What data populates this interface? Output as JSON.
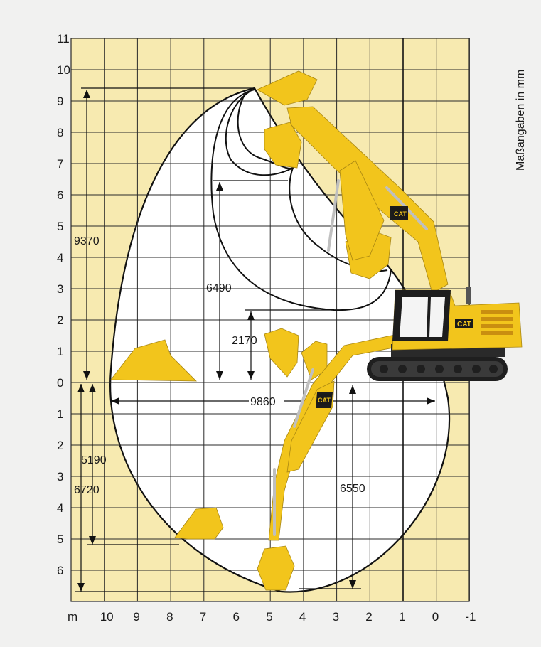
{
  "unit_label": "Maßangaben in mm",
  "x_axis": {
    "unit": "m",
    "ticks": [
      "10",
      "9",
      "8",
      "7",
      "6",
      "5",
      "4",
      "3",
      "2",
      "1",
      "0",
      "-1"
    ]
  },
  "y_axis": {
    "ticks_above": [
      "11",
      "10",
      "9",
      "8",
      "7",
      "6",
      "5",
      "4",
      "3",
      "2",
      "1",
      "0"
    ],
    "ticks_below": [
      "1",
      "2",
      "3",
      "4",
      "5",
      "6"
    ]
  },
  "dimensions": {
    "max_reach_height": "9370",
    "max_dump_height": "6490",
    "min_dump_height": "2170",
    "max_reach_ground": "9860",
    "max_dig_depth": "6720",
    "max_vertical_wall_depth": "5190",
    "dig_depth_2440": "6550"
  },
  "brand": "CAT",
  "colors": {
    "background": "#f1f1f0",
    "grid_fill": "#f7eab0",
    "machine_yellow": "#f2c51c"
  }
}
